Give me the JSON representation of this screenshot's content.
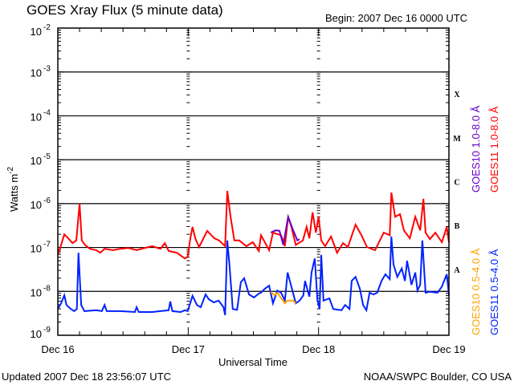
{
  "header": {
    "title": "GOES Xray Flux (5 minute data)",
    "begin": "Begin:  2007 Dec 16 0000 UTC"
  },
  "footer": {
    "updated": "Updated 2007 Dec 18 23:56:07 UTC",
    "source": "NOAA/SWPC Boulder, CO USA"
  },
  "chart_data": {
    "type": "line",
    "title": "GOES Xray Flux (5 minute data)",
    "xlabel": "Universal Time",
    "ylabel": "Watts m",
    "ylabel_sup": "-2",
    "yscale": "log",
    "ylim_log10": [
      -9,
      -2
    ],
    "xlim_hours": [
      0,
      72
    ],
    "x_ticks": [
      {
        "hour": 0,
        "label": "Dec 16"
      },
      {
        "hour": 24,
        "label": "Dec 17"
      },
      {
        "hour": 48,
        "label": "Dec 18"
      },
      {
        "hour": 72,
        "label": "Dec 19"
      }
    ],
    "y_ticks": [
      {
        "exp": -2,
        "base": "10",
        "sup": "-2"
      },
      {
        "exp": -3,
        "base": "10",
        "sup": "-3"
      },
      {
        "exp": -4,
        "base": "10",
        "sup": "-4"
      },
      {
        "exp": -5,
        "base": "10",
        "sup": "-5"
      },
      {
        "exp": -6,
        "base": "10",
        "sup": "-6"
      },
      {
        "exp": -7,
        "base": "10",
        "sup": "-7"
      },
      {
        "exp": -8,
        "base": "10",
        "sup": "-8"
      },
      {
        "exp": -9,
        "base": "10",
        "sup": "-9"
      }
    ],
    "gridlines_log10": [
      -3,
      -4,
      -5,
      -6,
      -7,
      -8
    ],
    "flare_classes": [
      {
        "label": "X",
        "exp": -3.5
      },
      {
        "label": "M",
        "exp": -4.5
      },
      {
        "label": "C",
        "exp": -5.5
      },
      {
        "label": "B",
        "exp": -6.5
      },
      {
        "label": "A",
        "exp": -7.5
      }
    ],
    "legend": [
      {
        "name": "GOES10 1.0-8.0 Å",
        "color": "#6a00c8"
      },
      {
        "name": "GOES11 1.0-8.0 Å",
        "color": "#ff0000"
      },
      {
        "name": "GOES10 0.5-4.0 Å",
        "color": "#ffa500"
      },
      {
        "name": "GOES11 0.5-4.0 Å",
        "color": "#0022ff"
      }
    ],
    "series": [
      {
        "name": "GOES11 1.0-8.0 Å",
        "color": "#ff0000",
        "points_hour_log10": [
          [
            0,
            -7.17
          ],
          [
            0.6,
            -6.94
          ],
          [
            1.2,
            -6.7
          ],
          [
            1.9,
            -6.79
          ],
          [
            2.7,
            -6.9
          ],
          [
            3.4,
            -6.84
          ],
          [
            4.0,
            -6.0
          ],
          [
            4.4,
            -6.84
          ],
          [
            5.0,
            -6.94
          ],
          [
            5.9,
            -7.03
          ],
          [
            7.1,
            -7.06
          ],
          [
            7.8,
            -7.12
          ],
          [
            8.6,
            -7.03
          ],
          [
            10.1,
            -7.06
          ],
          [
            11.5,
            -7.03
          ],
          [
            13.0,
            -7.01
          ],
          [
            14.5,
            -7.06
          ],
          [
            16.0,
            -7.01
          ],
          [
            17.4,
            -6.97
          ],
          [
            18.9,
            -7.03
          ],
          [
            19.7,
            -6.9
          ],
          [
            20.4,
            -7.08
          ],
          [
            21.9,
            -7.12
          ],
          [
            23.4,
            -7.25
          ],
          [
            23.9,
            -7.21
          ],
          [
            24.4,
            -6.79
          ],
          [
            24.8,
            -6.53
          ],
          [
            25.3,
            -6.79
          ],
          [
            26.0,
            -6.99
          ],
          [
            27.5,
            -6.62
          ],
          [
            28.8,
            -6.79
          ],
          [
            29.7,
            -6.84
          ],
          [
            30.8,
            -6.97
          ],
          [
            31.2,
            -5.71
          ],
          [
            31.8,
            -6.3
          ],
          [
            32.5,
            -6.84
          ],
          [
            33.4,
            -6.84
          ],
          [
            34.7,
            -6.97
          ],
          [
            35.9,
            -6.88
          ],
          [
            37.0,
            -7.08
          ],
          [
            37.4,
            -6.72
          ],
          [
            38.9,
            -7.06
          ],
          [
            39.6,
            -6.66
          ],
          [
            41.1,
            -6.72
          ],
          [
            41.8,
            -6.97
          ],
          [
            42.4,
            -6.3
          ],
          [
            43.0,
            -6.53
          ],
          [
            43.8,
            -6.94
          ],
          [
            45.1,
            -6.84
          ],
          [
            45.8,
            -6.53
          ],
          [
            46.3,
            -6.79
          ],
          [
            46.9,
            -6.2
          ],
          [
            47.5,
            -6.66
          ],
          [
            48.0,
            -6.3
          ],
          [
            48.5,
            -6.84
          ],
          [
            49.2,
            -6.97
          ],
          [
            50.3,
            -6.75
          ],
          [
            51.4,
            -7.12
          ],
          [
            52.5,
            -6.9
          ],
          [
            53.4,
            -6.99
          ],
          [
            54.8,
            -6.48
          ],
          [
            55.9,
            -6.72
          ],
          [
            56.9,
            -6.99
          ],
          [
            58.4,
            -7.06
          ],
          [
            60.0,
            -6.66
          ],
          [
            61.1,
            -6.72
          ],
          [
            61.4,
            -5.75
          ],
          [
            62.1,
            -6.3
          ],
          [
            63.0,
            -6.24
          ],
          [
            63.7,
            -6.61
          ],
          [
            64.8,
            -6.79
          ],
          [
            65.8,
            -6.3
          ],
          [
            66.7,
            -6.61
          ],
          [
            67.3,
            -5.89
          ],
          [
            67.7,
            -6.66
          ],
          [
            68.5,
            -6.81
          ],
          [
            69.5,
            -6.66
          ],
          [
            70.7,
            -6.88
          ],
          [
            71.6,
            -6.53
          ],
          [
            72,
            -6.88
          ]
        ]
      },
      {
        "name": "GOES10 1.0-8.0 Å",
        "color": "#6a00c8",
        "points_hour_log10": [
          [
            39.2,
            -6.66
          ],
          [
            40.1,
            -6.61
          ],
          [
            40.8,
            -6.62
          ],
          [
            41.5,
            -6.94
          ],
          [
            42.4,
            -6.3
          ],
          [
            43.2,
            -6.57
          ],
          [
            44.1,
            -6.84
          ],
          [
            44.5,
            -6.81
          ]
        ]
      },
      {
        "name": "GOES11 0.5-4.0 Å",
        "color": "#0022ff",
        "points_hour_log10": [
          [
            0,
            -8.4
          ],
          [
            0.6,
            -8.27
          ],
          [
            1.2,
            -8.09
          ],
          [
            1.6,
            -8.31
          ],
          [
            2.4,
            -8.4
          ],
          [
            3.0,
            -8.45
          ],
          [
            3.5,
            -8.4
          ],
          [
            3.8,
            -7.12
          ],
          [
            4.3,
            -8.31
          ],
          [
            4.9,
            -8.45
          ],
          [
            7.1,
            -8.43
          ],
          [
            8.1,
            -8.45
          ],
          [
            8.6,
            -8.31
          ],
          [
            9.0,
            -8.45
          ],
          [
            11.5,
            -8.45
          ],
          [
            14.2,
            -8.47
          ],
          [
            14.5,
            -8.36
          ],
          [
            14.9,
            -8.47
          ],
          [
            17.4,
            -8.47
          ],
          [
            18.9,
            -8.45
          ],
          [
            20.4,
            -8.43
          ],
          [
            20.7,
            -8.23
          ],
          [
            21.1,
            -8.45
          ],
          [
            22.6,
            -8.47
          ],
          [
            23.4,
            -8.43
          ],
          [
            23.9,
            -8.45
          ],
          [
            24.8,
            -8.1
          ],
          [
            25.6,
            -8.31
          ],
          [
            26.3,
            -8.36
          ],
          [
            27.2,
            -8.07
          ],
          [
            27.8,
            -8.18
          ],
          [
            28.7,
            -8.25
          ],
          [
            29.6,
            -8.21
          ],
          [
            30.5,
            -8.36
          ],
          [
            30.8,
            -8.54
          ],
          [
            31.2,
            -6.84
          ],
          [
            31.6,
            -7.39
          ],
          [
            32.2,
            -8.4
          ],
          [
            33.0,
            -8.42
          ],
          [
            33.7,
            -7.79
          ],
          [
            34.3,
            -7.7
          ],
          [
            35.2,
            -8.07
          ],
          [
            36.1,
            -8.14
          ],
          [
            37.0,
            -8.05
          ],
          [
            37.4,
            -8.03
          ],
          [
            38.1,
            -7.94
          ],
          [
            38.9,
            -7.87
          ],
          [
            39.6,
            -8.27
          ],
          [
            40.4,
            -7.98
          ],
          [
            41.1,
            -8.03
          ],
          [
            41.8,
            -8.21
          ],
          [
            42.3,
            -7.57
          ],
          [
            42.9,
            -7.85
          ],
          [
            43.8,
            -8.27
          ],
          [
            44.5,
            -8.21
          ],
          [
            45.2,
            -8.09
          ],
          [
            45.5,
            -7.76
          ],
          [
            46.3,
            -8.12
          ],
          [
            46.7,
            -7.57
          ],
          [
            47.3,
            -7.25
          ],
          [
            47.8,
            -8.21
          ],
          [
            48.2,
            -8.4
          ],
          [
            48.5,
            -7.17
          ],
          [
            48.9,
            -8.21
          ],
          [
            50.0,
            -8.16
          ],
          [
            50.7,
            -8.4
          ],
          [
            52.2,
            -8.43
          ],
          [
            52.9,
            -8.31
          ],
          [
            53.7,
            -8.4
          ],
          [
            54.1,
            -7.76
          ],
          [
            54.8,
            -7.67
          ],
          [
            55.6,
            -7.94
          ],
          [
            56.2,
            -8.31
          ],
          [
            56.8,
            -8.43
          ],
          [
            57.4,
            -8.03
          ],
          [
            58.1,
            -8.07
          ],
          [
            58.8,
            -8.03
          ],
          [
            59.6,
            -7.76
          ],
          [
            60.3,
            -7.61
          ],
          [
            61.1,
            -7.72
          ],
          [
            61.4,
            -6.75
          ],
          [
            61.8,
            -7.39
          ],
          [
            62.5,
            -7.67
          ],
          [
            63.3,
            -7.48
          ],
          [
            63.9,
            -7.76
          ],
          [
            64.3,
            -7.3
          ],
          [
            65.1,
            -7.85
          ],
          [
            65.8,
            -7.57
          ],
          [
            66.2,
            -7.98
          ],
          [
            66.7,
            -7.85
          ],
          [
            67.1,
            -6.84
          ],
          [
            67.7,
            -8.03
          ],
          [
            68.5,
            -8.01
          ],
          [
            69.9,
            -8.03
          ],
          [
            70.7,
            -7.89
          ],
          [
            71.6,
            -7.61
          ],
          [
            72,
            -8.09
          ]
        ]
      },
      {
        "name": "GOES10 0.5-4.0 Å",
        "color": "#ffa500",
        "points_hour_log10": [
          [
            39.2,
            -8.01
          ],
          [
            39.9,
            -8.09
          ],
          [
            40.5,
            -8.03
          ],
          [
            41.1,
            -8.16
          ],
          [
            41.5,
            -8.21
          ],
          [
            41.8,
            -8.27
          ],
          [
            42.3,
            -8.21
          ],
          [
            43.3,
            -8.21
          ],
          [
            43.8,
            -8.27
          ]
        ]
      }
    ]
  }
}
